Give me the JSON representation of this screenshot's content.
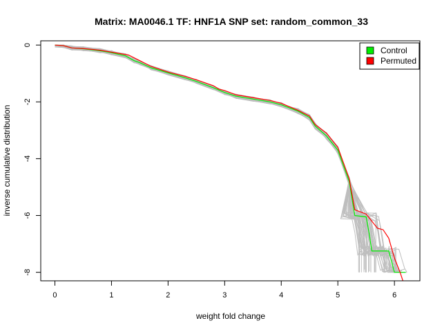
{
  "chart_data": {
    "type": "line",
    "title": "Matrix: MA0046.1 TF: HNF1A SNP set: random_common_33",
    "xlabel": "weight fold change",
    "ylabel": "inverse cumulative distribution",
    "xlim": [
      -0.25,
      6.45
    ],
    "ylim": [
      -8.3,
      0.15
    ],
    "xticks": [
      0,
      1,
      2,
      3,
      4,
      5,
      6
    ],
    "yticks": [
      0,
      -2,
      -4,
      -6,
      -8
    ],
    "legend_position": "top-right",
    "grid": false,
    "series": [
      {
        "name": "Control",
        "color": "#00ee00",
        "x": [
          0.0,
          0.15,
          0.3,
          0.5,
          0.8,
          1.0,
          1.25,
          1.4,
          1.5,
          1.7,
          2.0,
          2.3,
          2.5,
          2.8,
          3.0,
          3.2,
          3.5,
          3.8,
          4.0,
          4.3,
          4.5,
          4.6,
          4.8,
          5.0,
          5.2,
          5.3,
          5.5,
          5.55,
          5.6,
          5.65,
          5.7,
          5.8,
          5.9,
          6.0,
          6.2
        ],
        "y": [
          0.0,
          -0.02,
          -0.1,
          -0.13,
          -0.2,
          -0.27,
          -0.38,
          -0.55,
          -0.62,
          -0.8,
          -0.98,
          -1.15,
          -1.28,
          -1.5,
          -1.67,
          -1.8,
          -1.9,
          -2.0,
          -2.1,
          -2.33,
          -2.55,
          -2.85,
          -3.2,
          -3.7,
          -4.8,
          -6.0,
          -6.05,
          -6.6,
          -7.25,
          -7.25,
          -7.25,
          -7.25,
          -7.25,
          -8.0,
          -8.0
        ]
      },
      {
        "name": "Permuted",
        "color": "#ff0000",
        "x": [
          0.0,
          0.15,
          0.3,
          0.5,
          0.8,
          1.0,
          1.3,
          1.5,
          1.7,
          2.0,
          2.3,
          2.5,
          2.8,
          2.9,
          3.0,
          3.2,
          3.5,
          3.8,
          4.0,
          4.3,
          4.5,
          4.6,
          4.8,
          5.0,
          5.2,
          5.3,
          5.5,
          5.6,
          5.7,
          5.8,
          5.9,
          6.0,
          6.1,
          6.15
        ],
        "y": [
          0.0,
          -0.02,
          -0.1,
          -0.12,
          -0.18,
          -0.25,
          -0.35,
          -0.55,
          -0.75,
          -0.95,
          -1.1,
          -1.22,
          -1.43,
          -1.55,
          -1.6,
          -1.75,
          -1.85,
          -1.95,
          -2.05,
          -2.3,
          -2.5,
          -2.8,
          -3.1,
          -3.6,
          -4.7,
          -5.8,
          -5.95,
          -6.2,
          -6.45,
          -6.5,
          -6.8,
          -7.5,
          -8.0,
          -8.3
        ]
      }
    ],
    "background_series_description": "many grey permutation curves",
    "background_color": "#bebebe"
  }
}
